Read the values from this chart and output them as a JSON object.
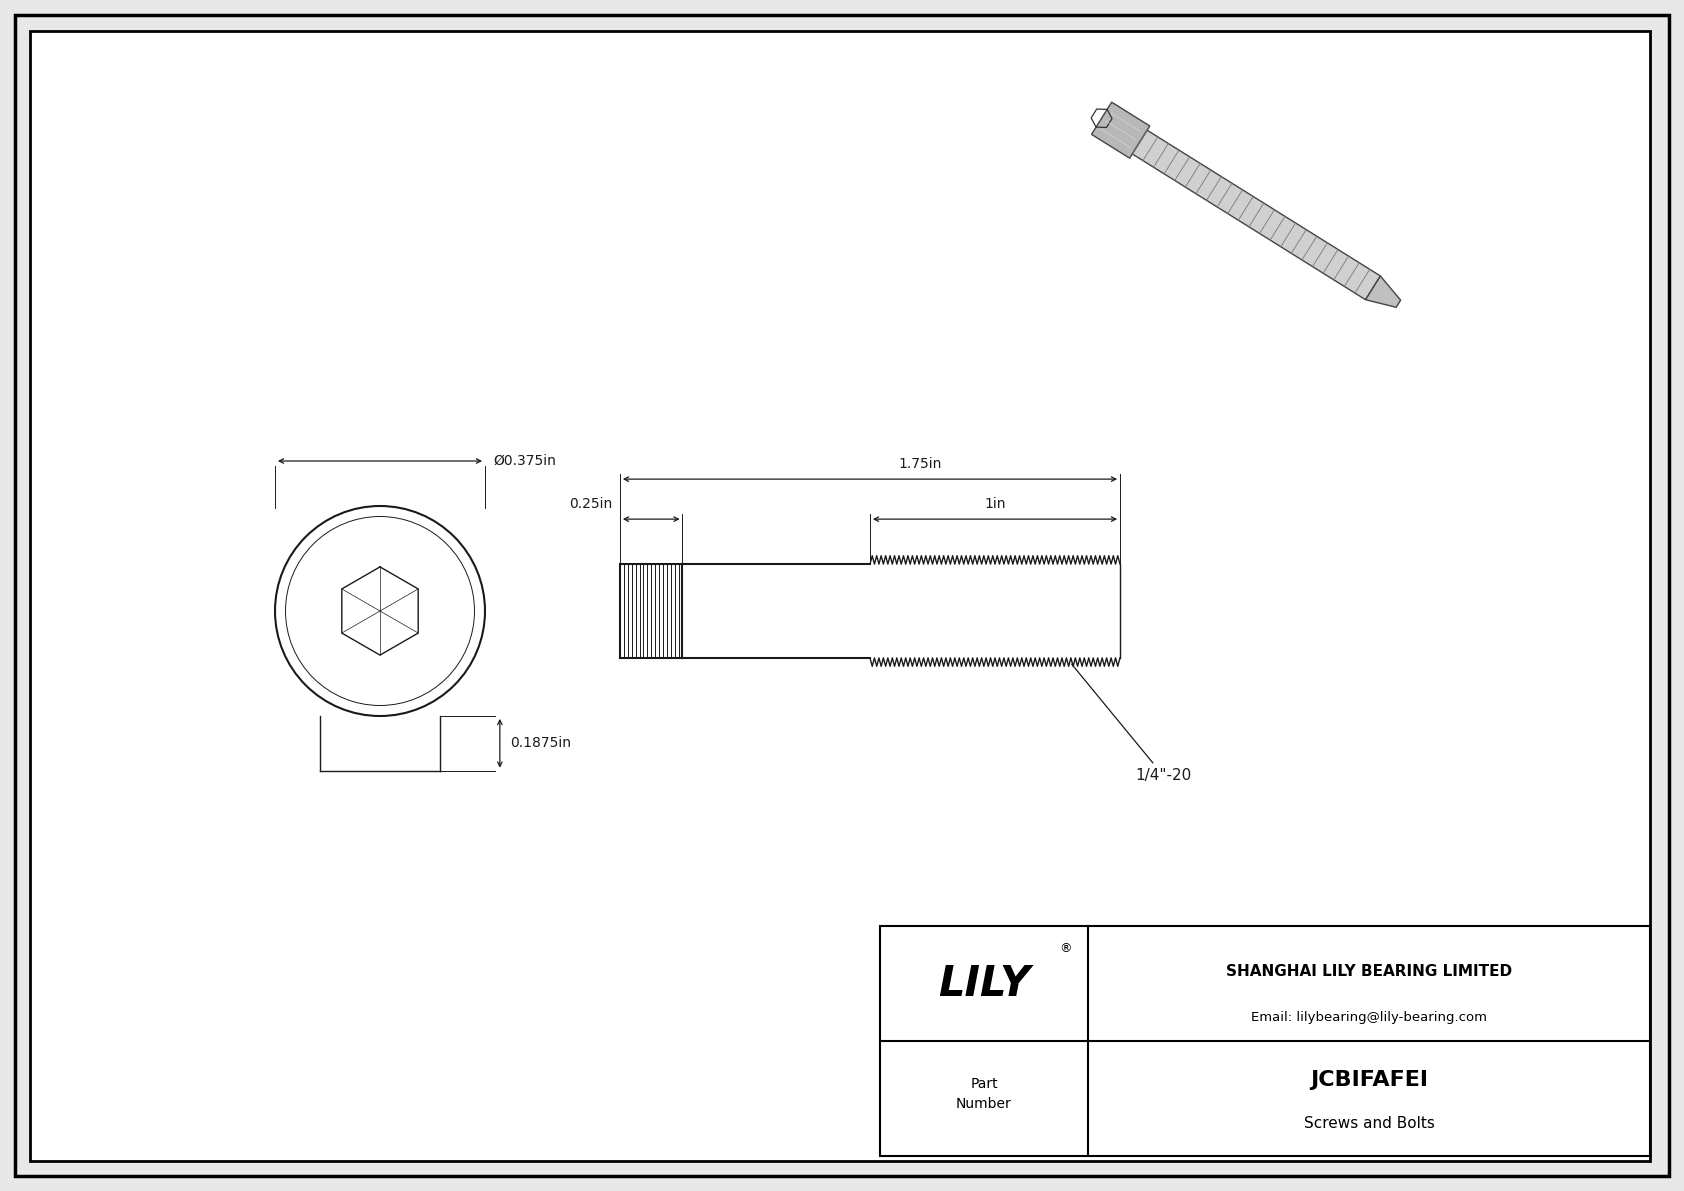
{
  "bg_color": "#e8e8e8",
  "drawing_bg": "#ffffff",
  "line_color": "#1a1a1a",
  "border_color": "#000000",
  "part_number": "JCBIFAFEI",
  "part_type": "Screws and Bolts",
  "company": "SHANGHAI LILY BEARING LIMITED",
  "email": "Email: lilybearing@lily-bearing.com",
  "brand": "LILY",
  "dim_diameter": "Ø0.375in",
  "dim_height": "0.1875in",
  "dim_total_length": "1.75in",
  "dim_head_length": "0.25in",
  "dim_thread_length": "1in",
  "dim_thread_spec": "1/4\"-20"
}
